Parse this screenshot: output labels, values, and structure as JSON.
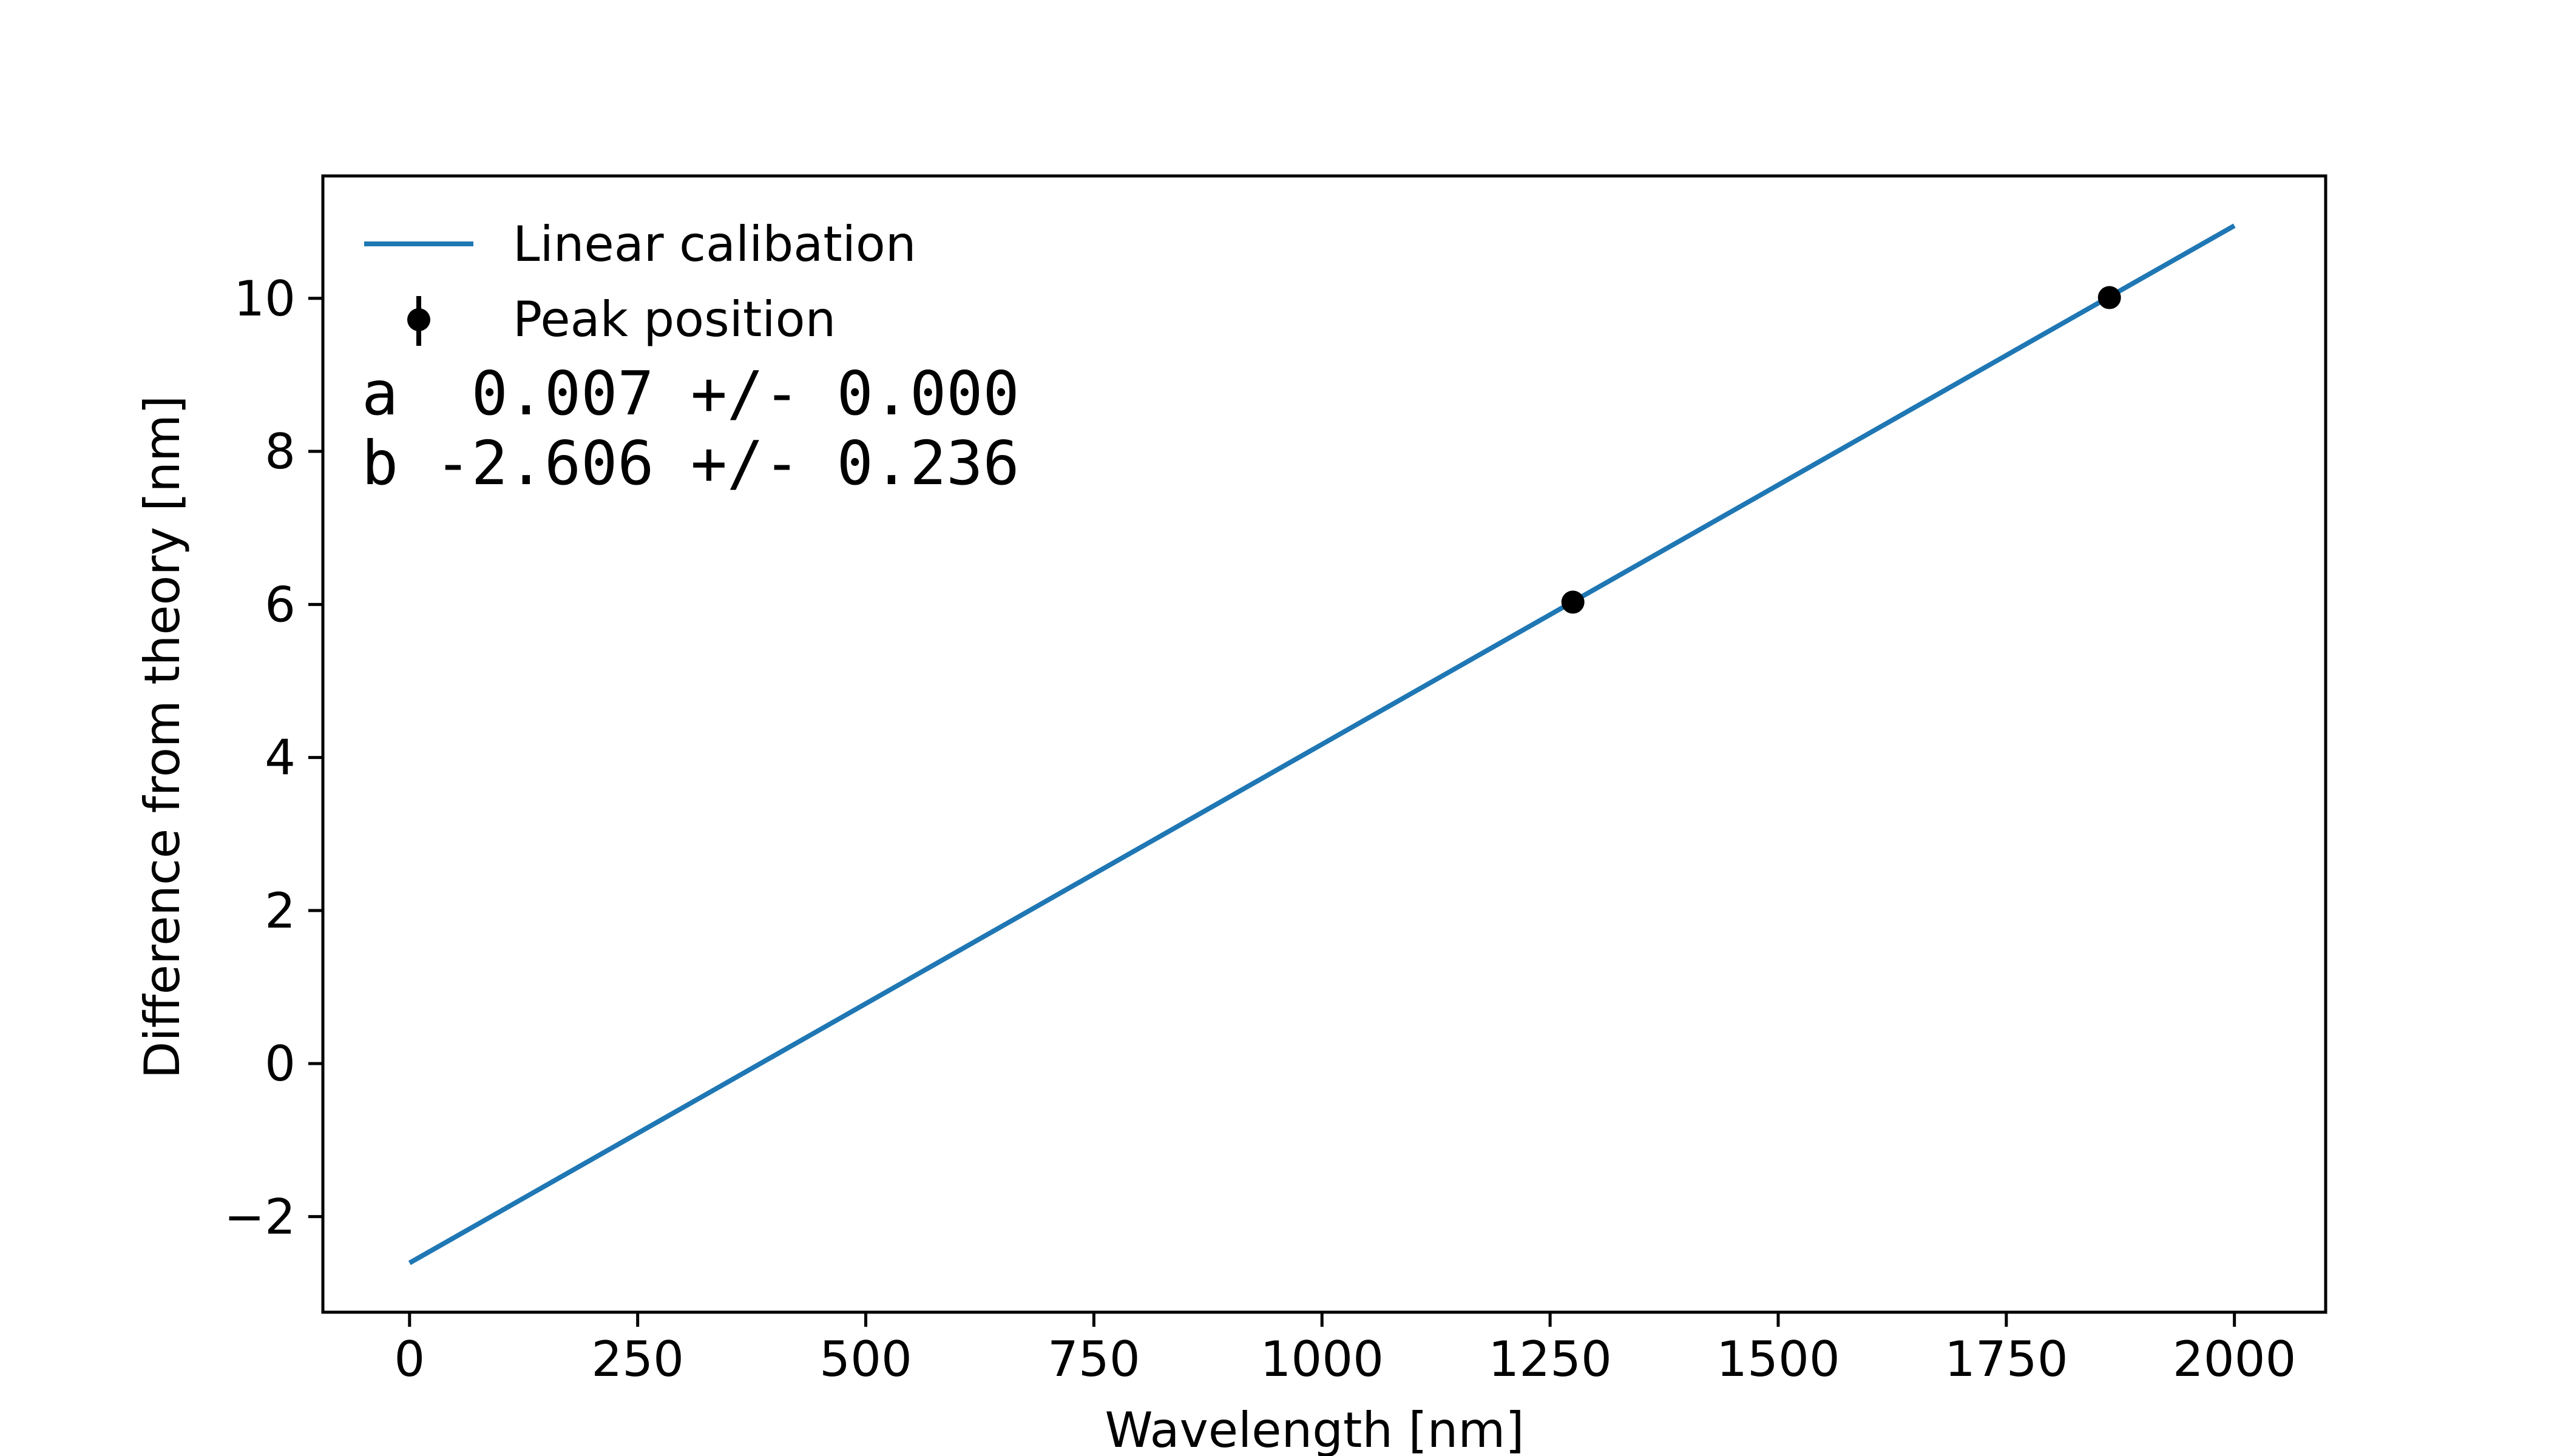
{
  "chart_data": {
    "type": "line",
    "title": "",
    "xlabel": "Wavelength [nm]",
    "ylabel": "Difference from theory [nm]",
    "xlim": [
      -95,
      2100
    ],
    "ylim": [
      -3.25,
      11.6
    ],
    "xticks": [
      0,
      250,
      500,
      750,
      1000,
      1250,
      1500,
      1750,
      2000
    ],
    "xtick_labels": [
      "0",
      "250",
      "500",
      "750",
      "1000",
      "1250",
      "1500",
      "1750",
      "2000"
    ],
    "yticks": [
      -2,
      0,
      2,
      4,
      6,
      8,
      10
    ],
    "ytick_labels": [
      "−2",
      "0",
      "2",
      "4",
      "6",
      "8",
      "10"
    ],
    "grid": false,
    "legend_position": "top-left",
    "series": [
      {
        "name": "Linear calibation",
        "kind": "line",
        "color": "#1f77b4",
        "x": [
          0,
          2000
        ],
        "y": [
          -2.606,
          10.95
        ]
      },
      {
        "name": "Peak position",
        "kind": "errorbar",
        "color": "#000000",
        "x": [
          1275,
          1863
        ],
        "y": [
          6.03,
          10.01
        ]
      }
    ],
    "annotations": [
      "a  0.007 +/- 0.000",
      "b -2.606 +/- 0.236"
    ]
  }
}
